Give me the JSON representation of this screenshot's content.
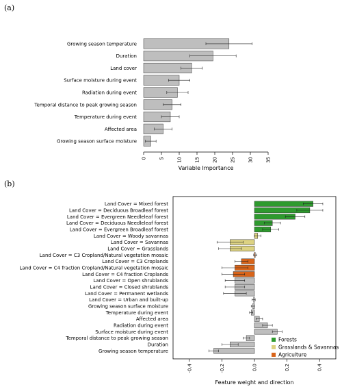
{
  "panel_a_label": "(a)",
  "panel_b_label": "(b)",
  "chart_data": [
    {
      "type": "bar",
      "orientation": "horizontal",
      "categories": [
        "Growing season temperature",
        "Duration",
        "Land cover",
        "Surface moisture during event",
        "Radiation during event",
        "Temporal distance to peak growing season",
        "Temperature during event",
        "Affected area",
        "Growing season surface moisture"
      ],
      "values": [
        24,
        19.5,
        13.5,
        10,
        9.5,
        8,
        7.5,
        5.5,
        2
      ],
      "error": [
        6.5,
        6.5,
        3,
        3,
        3,
        2.5,
        2.5,
        2.5,
        1.5
      ],
      "xlabel": "Variable Importance",
      "ylabel": "",
      "xlim": [
        0,
        35
      ],
      "xticks": [
        0,
        5,
        10,
        15,
        20,
        25,
        30,
        35
      ],
      "bar_color": "#bebebe"
    },
    {
      "type": "bar",
      "orientation": "horizontal",
      "categories": [
        "Land Cover = Mixed forest",
        "Land Cover = Deciduous Broadleaf forest",
        "Land Cover = Evergreen Needleleaf forest",
        "Land Cover = Deciduous Needleleaf forest",
        "Land Cover = Evergreen Broadleaf forest",
        "Land Cover = Woody savannas",
        "Land Cover = Savannas",
        "Land Cover = Grasslands",
        "Land Cover = C3 Cropland/Natural vegetation mosaic",
        "Land Cover = C3 Croplands",
        "Land Cover = C4 fraction Cropland/Natural vegetation mosaic",
        "Land Cover = C4 fraction Croplands",
        "Land Cover = Open shrublands",
        "Land Cover = Closed shrublands",
        "Land Cover = Permanent wetlands",
        "Land Cover = Urban and built-up",
        "Growing season surface moisture",
        "Temperature during event",
        "Affected area",
        "Radiation during event",
        "Surface moisture during event",
        "Temporal distance to peak growing season",
        "Duration",
        "Growing season temperature"
      ],
      "values": [
        0.36,
        0.34,
        0.25,
        0.11,
        0.1,
        0.02,
        -0.15,
        -0.15,
        0.005,
        -0.08,
        -0.12,
        -0.13,
        -0.12,
        -0.12,
        -0.12,
        -0.005,
        -0.01,
        -0.02,
        0.03,
        0.08,
        0.14,
        -0.05,
        -0.15,
        -0.25
      ],
      "error": [
        0.06,
        0.08,
        0.06,
        0.05,
        0.05,
        0.02,
        0.08,
        0.07,
        0.01,
        0.04,
        0.08,
        0.07,
        0.06,
        0.06,
        0.07,
        0.01,
        0.01,
        0.01,
        0.02,
        0.03,
        0.03,
        0.02,
        0.05,
        0.03
      ],
      "groups": [
        "forest",
        "forest",
        "forest",
        "forest",
        "forest",
        "grass",
        "grass",
        "grass",
        "agri",
        "agri",
        "agri",
        "agri",
        "other",
        "other",
        "other",
        "other",
        "other",
        "other",
        "other",
        "other",
        "other",
        "other",
        "other",
        "other"
      ],
      "xlabel": "Feature weight and direction",
      "ylabel": "",
      "xlim": [
        -0.5,
        0.5
      ],
      "xticks": [
        -0.4,
        -0.2,
        0.0,
        0.2,
        0.4
      ],
      "xtick_labels": [
        "-0.4",
        "-0.2",
        "0.0",
        "0.2",
        "0.4"
      ],
      "legend": {
        "position": "bottom-right",
        "entries": [
          {
            "key": "forest",
            "label": "Forests",
            "color": "#2e9a2e"
          },
          {
            "key": "grass",
            "label": "Grasslands & Savannas",
            "color": "#dcd282"
          },
          {
            "key": "agri",
            "label": "Agriculture",
            "color": "#d8641a"
          }
        ]
      },
      "other_color": "#bebebe"
    }
  ]
}
